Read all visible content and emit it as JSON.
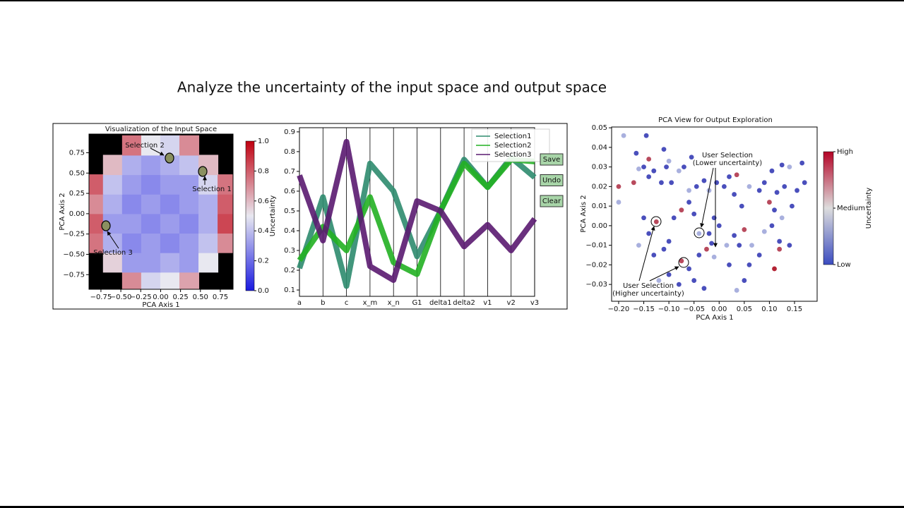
{
  "slide": {
    "title": "Analyze the uncertainty of the input space and output space"
  },
  "buttons": [
    "Save",
    "Undo",
    "Clear"
  ],
  "chart_data": [
    {
      "type": "heatmap",
      "title": "Visualization of the Input Space",
      "x_label": "PCA Axis 1",
      "y_label": "PCA Axis 2",
      "x": [
        -0.84,
        -0.6,
        -0.36,
        -0.12,
        0.12,
        0.36,
        0.6,
        0.84
      ],
      "y": [
        -0.84,
        -0.6,
        -0.36,
        -0.12,
        0.12,
        0.36,
        0.6,
        0.84
      ],
      "z": [
        [
          null,
          null,
          0.7,
          0.45,
          0.5,
          0.65,
          null,
          null
        ],
        [
          null,
          0.55,
          0.3,
          0.3,
          0.35,
          0.3,
          0.5,
          null
        ],
        [
          0.75,
          0.35,
          0.25,
          0.3,
          0.25,
          0.3,
          0.4,
          0.7
        ],
        [
          0.8,
          0.3,
          0.3,
          0.25,
          0.3,
          0.25,
          0.35,
          0.85
        ],
        [
          0.7,
          0.35,
          0.25,
          0.3,
          0.25,
          0.3,
          0.35,
          0.8
        ],
        [
          0.8,
          0.4,
          0.3,
          0.25,
          0.3,
          0.3,
          0.45,
          0.75
        ],
        [
          null,
          0.6,
          0.35,
          0.3,
          0.35,
          0.4,
          0.6,
          null
        ],
        [
          null,
          null,
          0.75,
          0.5,
          0.45,
          0.7,
          null,
          null
        ]
      ],
      "xlim": [
        -0.9,
        0.91
      ],
      "ylim": [
        -0.93,
        0.98
      ],
      "xticks": [
        {
          "value": -0.75,
          "label": "−0.75"
        },
        {
          "value": -0.5,
          "label": "−0.50"
        },
        {
          "value": -0.25,
          "label": "−0.25"
        },
        {
          "value": 0,
          "label": "0.00"
        },
        0.25,
        {
          "value": 0.5,
          "label": "0.50"
        },
        0.75
      ],
      "yticks": [
        {
          "value": -0.75,
          "label": "−0.75"
        },
        {
          "value": -0.5,
          "label": "−0.50"
        },
        {
          "value": -0.25,
          "label": "−0.25"
        },
        {
          "value": 0,
          "label": "0.00"
        },
        0.25,
        {
          "value": 0.5,
          "label": "0.50"
        },
        0.75
      ],
      "colorbar": {
        "label": "Uncertainty",
        "lim": [
          0,
          1
        ],
        "ticks": [
          {
            "value": 0,
            "label": "0.0"
          },
          0.2,
          0.4,
          0.6,
          0.8,
          {
            "value": 1,
            "label": "1.0"
          }
        ]
      },
      "annotations": [
        "Selection 2",
        "Selection 1",
        "Selection 3"
      ]
    },
    {
      "type": "parallel",
      "categories": [
        "a",
        "b",
        "c",
        "x_m",
        "x_n",
        "G1",
        "delta1",
        "delta2",
        "v1",
        "v2",
        "v3"
      ],
      "ylim": [
        0.068,
        0.921
      ],
      "yticks": [
        0.1,
        0.2,
        0.3,
        0.4,
        0.5,
        0.6,
        0.7,
        0.8,
        0.9
      ],
      "legend": "upper right",
      "series": [
        {
          "name": "Selection1",
          "color": "#2e8b6e",
          "values": [
            0.21,
            0.57,
            0.12,
            0.74,
            0.6,
            0.27,
            0.5,
            0.76,
            0.62,
            0.77,
            0.67
          ]
        },
        {
          "name": "Selection2",
          "color": "#22b022",
          "values": [
            0.25,
            0.42,
            0.3,
            0.57,
            0.24,
            0.18,
            0.5,
            0.74,
            0.62,
            0.76,
            0.75
          ]
        },
        {
          "name": "Selection3",
          "color": "#5a1a70",
          "values": [
            0.68,
            0.35,
            0.85,
            0.22,
            0.15,
            0.55,
            0.5,
            0.32,
            0.43,
            0.3,
            0.46
          ]
        }
      ]
    },
    {
      "type": "scatter",
      "title": "PCA View for Output Exploration",
      "x_label": "PCA Axis 1",
      "y_label": "PCA Axis 2",
      "xlim": [
        -0.214,
        0.195
      ],
      "ylim": [
        -0.0386,
        0.0504
      ],
      "xticks": [
        {
          "value": -0.2,
          "label": "−0.20"
        },
        {
          "value": -0.15,
          "label": "−0.15"
        },
        {
          "value": -0.1,
          "label": "−0.10"
        },
        {
          "value": -0.05,
          "label": "−0.05"
        },
        {
          "value": 0,
          "label": "0.00"
        },
        0.05,
        {
          "value": 0.1,
          "label": "0.10"
        },
        0.15
      ],
      "yticks": [
        {
          "value": -0.03,
          "label": "−0.03"
        },
        {
          "value": -0.02,
          "label": "−0.02"
        },
        {
          "value": -0.01,
          "label": "−0.01"
        },
        {
          "value": 0,
          "label": "0.00"
        },
        0.01,
        0.02,
        0.03,
        0.04,
        0.05
      ],
      "x": [
        -0.19,
        -0.145,
        -0.2,
        -0.2,
        -0.165,
        -0.16,
        -0.14,
        -0.15,
        -0.17,
        -0.14,
        -0.13,
        -0.11,
        -0.1,
        -0.105,
        -0.115,
        -0.095,
        -0.08,
        -0.07,
        -0.055,
        -0.045,
        -0.06,
        -0.03,
        -0.02,
        -0.005,
        0.01,
        0.02,
        0.035,
        0.03,
        0.045,
        0.06,
        0.08,
        0.09,
        0.105,
        0.125,
        0.14,
        0.165,
        0.17,
        0.155,
        0.13,
        0.115,
        0.1,
        0.11,
        0.125,
        0.145,
        0.105,
        0.09,
        0.12,
        0.14,
        0.12,
        0.11,
        0.08,
        0.065,
        0.05,
        0.03,
        0.04,
        0.06,
        0.05,
        0.035,
        0.02,
        0.015,
        0.0,
        -0.01,
        -0.02,
        -0.04,
        -0.05,
        -0.06,
        -0.075,
        -0.09,
        -0.1,
        -0.125,
        -0.14,
        -0.15,
        -0.16,
        -0.13,
        -0.11,
        -0.1,
        -0.075,
        -0.06,
        -0.05,
        -0.03,
        -0.04,
        -0.01,
        -0.015,
        -0.025,
        -0.08,
        -0.12
      ],
      "values": [
        0.046,
        0.046,
        0.02,
        0.012,
        0.037,
        0.029,
        0.034,
        0.03,
        0.022,
        0.025,
        0.028,
        0.039,
        0.033,
        0.03,
        0.022,
        0.022,
        0.028,
        0.03,
        0.035,
        0.02,
        0.018,
        0.023,
        0.018,
        0.022,
        0.02,
        0.025,
        0.026,
        0.016,
        0.01,
        0.02,
        0.018,
        0.022,
        0.028,
        0.031,
        0.03,
        0.032,
        0.022,
        0.018,
        0.02,
        0.017,
        0.012,
        0.008,
        0.004,
        0.01,
        0.0,
        -0.003,
        -0.008,
        -0.01,
        -0.012,
        -0.022,
        -0.015,
        -0.01,
        -0.002,
        -0.005,
        -0.01,
        -0.02,
        -0.028,
        -0.033,
        -0.02,
        -0.01,
        0.0,
        0.004,
        -0.004,
        -0.004,
        0.006,
        0.012,
        0.008,
        0.004,
        -0.008,
        0.002,
        -0.004,
        0.004,
        -0.01,
        -0.015,
        -0.012,
        -0.025,
        -0.018,
        -0.022,
        -0.028,
        -0.032,
        -0.015,
        -0.016,
        -0.009,
        -0.012,
        -0.03,
        -0.028
      ],
      "uncertainty": [
        0.4,
        0.1,
        0.85,
        0.4,
        0.1,
        0.4,
        0.85,
        0.1,
        0.85,
        0.1,
        0.1,
        0.1,
        0.4,
        0.1,
        0.1,
        0.1,
        0.4,
        0.1,
        0.1,
        0.1,
        0.4,
        0.1,
        0.4,
        0.1,
        0.1,
        0.1,
        0.85,
        0.1,
        0.1,
        0.4,
        0.1,
        0.1,
        0.1,
        0.1,
        0.4,
        0.1,
        0.1,
        0.1,
        0.1,
        0.1,
        0.85,
        0.1,
        0.4,
        0.1,
        0.1,
        0.4,
        0.1,
        0.1,
        0.85,
        0.95,
        0.1,
        0.4,
        0.85,
        0.1,
        0.1,
        0.1,
        0.1,
        0.4,
        0.1,
        0.4,
        0.1,
        0.1,
        0.1,
        0.4,
        0.1,
        0.1,
        0.85,
        0.1,
        0.1,
        0.85,
        0.1,
        0.1,
        0.4,
        0.1,
        0.1,
        0.1,
        0.85,
        0.1,
        0.1,
        0.1,
        0.1,
        0.4,
        0.1,
        0.85,
        0.1,
        0.4
      ],
      "colorbar": {
        "label": "Uncertainty",
        "lim": [
          0,
          1
        ],
        "ticks": [
          {
            "value": 1,
            "label": "High"
          },
          {
            "value": 0.5,
            "label": "Medium"
          },
          {
            "value": 0,
            "label": "Low"
          }
        ]
      },
      "annotations": [
        [
          "User Selection",
          "(Lower uncertainty)"
        ],
        [
          "User Selection",
          "(Higher uncertainty)"
        ]
      ]
    }
  ]
}
